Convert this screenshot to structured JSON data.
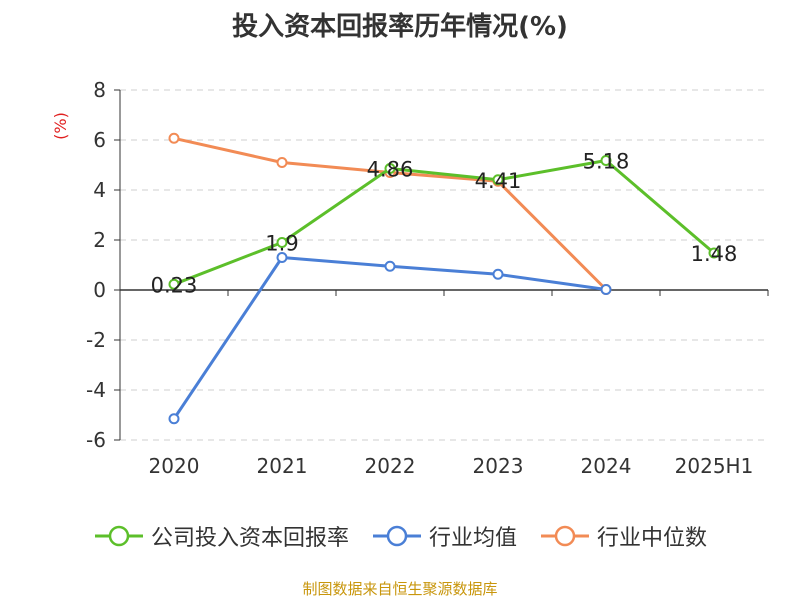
{
  "chart_data": {
    "type": "line",
    "title": "投入资本回报率历年情况(%)",
    "ylabel": "(%)",
    "categories": [
      "2020",
      "2021",
      "2022",
      "2023",
      "2024",
      "2025H1"
    ],
    "ylim": [
      -6,
      8
    ],
    "yticks": [
      "8",
      "6",
      "4",
      "2",
      "0",
      "-2",
      "-4",
      "-6"
    ],
    "grid": true,
    "legend_position": "bottom",
    "series": [
      {
        "name": "公司投入资本回报率",
        "color": "#5cbf2a",
        "values": [
          0.23,
          1.9,
          4.86,
          4.41,
          5.18,
          1.48
        ],
        "labels": [
          "0.23",
          "1.9",
          "4.86",
          "4.41",
          "5.18",
          "1.48"
        ]
      },
      {
        "name": "行业均值",
        "color": "#4a7fd6",
        "values": [
          -5.15,
          1.3,
          0.95,
          0.63,
          0.02,
          null
        ]
      },
      {
        "name": "行业中位数",
        "color": "#f28b55",
        "values": [
          6.07,
          5.1,
          4.7,
          4.35,
          0.02,
          null
        ]
      }
    ]
  },
  "footer": "制图数据来自恒生聚源数据库"
}
